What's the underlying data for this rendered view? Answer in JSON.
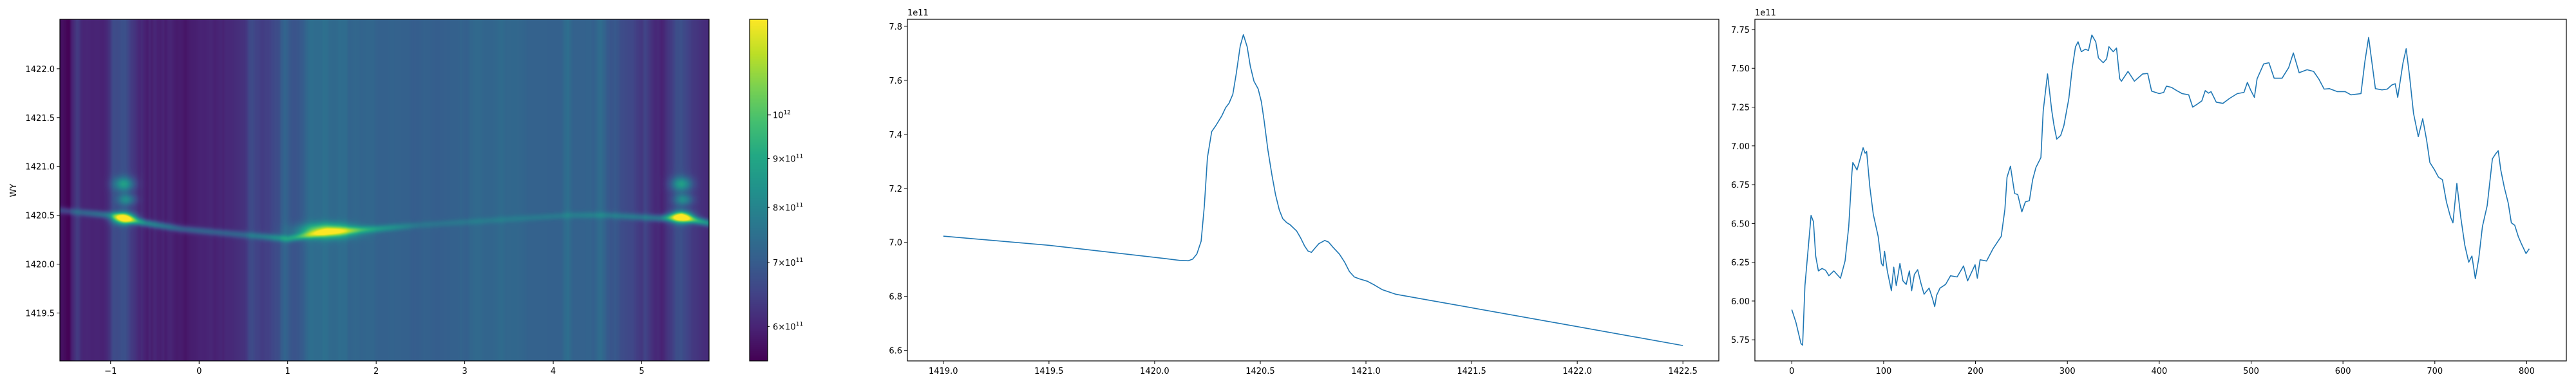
{
  "chart_data": [
    {
      "type": "heatmap",
      "ylabel": "WY",
      "xlabel": "",
      "xlim": [
        -1.573,
        5.76
      ],
      "ylim": [
        1419.01,
        1422.506
      ],
      "xticks": [
        -1,
        0,
        1,
        2,
        3,
        4,
        5
      ],
      "xtick_labels": [
        "−1",
        "0",
        "1",
        "2",
        "3",
        "4",
        "5"
      ],
      "yticks": [
        1419.5,
        1420.0,
        1420.5,
        1421.0,
        1421.5,
        1422.0
      ],
      "ytick_labels": [
        "1419.5",
        "1420.0",
        "1420.5",
        "1421.0",
        "1421.5",
        "1422.0"
      ],
      "colormap": "viridis",
      "column_background": "follows the series of the right-hand line chart (same 804 columns)",
      "ridge": [
        [
          -1.57,
          1420.55,
          0.8
        ],
        [
          -1.0,
          1420.5,
          1.5
        ],
        [
          -0.85,
          1420.47,
          4
        ],
        [
          -0.6,
          1420.42,
          2
        ],
        [
          -0.2,
          1420.36,
          1.2
        ],
        [
          0.5,
          1420.3,
          1
        ],
        [
          1.0,
          1420.26,
          1.8
        ],
        [
          1.45,
          1420.33,
          3
        ],
        [
          2.0,
          1420.36,
          1.5
        ],
        [
          2.5,
          1420.4,
          0.5
        ],
        [
          3.5,
          1420.46,
          0.5
        ],
        [
          4.2,
          1420.5,
          0.6
        ],
        [
          4.6,
          1420.5,
          0.8
        ],
        [
          5.2,
          1420.47,
          1.5
        ],
        [
          5.45,
          1420.48,
          4
        ],
        [
          5.76,
          1420.42,
          2
        ]
      ],
      "blobs": [
        [
          -0.85,
          1420.47,
          0.08,
          0.04,
          5
        ],
        [
          -0.85,
          1420.82,
          0.08,
          0.05,
          2
        ],
        [
          -0.82,
          1420.66,
          0.07,
          0.04,
          1.5
        ],
        [
          1.45,
          1420.34,
          0.2,
          0.05,
          4
        ],
        [
          5.45,
          1420.48,
          0.08,
          0.04,
          5
        ],
        [
          5.45,
          1420.82,
          0.08,
          0.05,
          2
        ],
        [
          5.47,
          1420.66,
          0.07,
          0.04,
          1.5
        ]
      ],
      "colorbar": {
        "scale": "log",
        "range": [
          552000000000.0,
          1260000000000.0
        ],
        "ticks": [
          600000000000.0,
          700000000000.0,
          800000000000.0,
          900000000000.0,
          1000000000000.0
        ],
        "tick_labels": [
          {
            "base": "6×10",
            "exp": "11"
          },
          {
            "base": "7×10",
            "exp": "11"
          },
          {
            "base": "8×10",
            "exp": "11"
          },
          {
            "base": "9×10",
            "exp": "11"
          },
          {
            "base": "10",
            "exp": "12"
          }
        ]
      }
    },
    {
      "type": "line",
      "xlabel": "",
      "ylabel": "",
      "offset_text": "1e11",
      "xlim": [
        1418.83,
        1422.67
      ],
      "ylim": [
        6.561,
        7.826
      ],
      "xticks": [
        1419.0,
        1419.5,
        1420.0,
        1420.5,
        1421.0,
        1421.5,
        1422.0,
        1422.5
      ],
      "xtick_labels": [
        "1419.0",
        "1419.5",
        "1420.0",
        "1420.5",
        "1421.0",
        "1421.5",
        "1422.0",
        "1422.5"
      ],
      "yticks": [
        6.6,
        6.8,
        7.0,
        7.2,
        7.4,
        7.6,
        7.8
      ],
      "ytick_labels": [
        "6.6",
        "6.8",
        "7.0",
        "7.2",
        "7.4",
        "7.6",
        "7.8"
      ],
      "color": "#1f77b4",
      "x": [
        1419.0,
        1419.5,
        1420.05,
        1420.12,
        1420.16,
        1420.18,
        1420.2,
        1420.22,
        1420.235,
        1420.25,
        1420.27,
        1420.29,
        1420.318,
        1420.336,
        1420.352,
        1420.37,
        1420.386,
        1420.405,
        1420.42,
        1420.438,
        1420.453,
        1420.47,
        1420.49,
        1420.505,
        1420.518,
        1420.536,
        1420.555,
        1420.572,
        1420.59,
        1420.606,
        1420.625,
        1420.64,
        1420.672,
        1420.69,
        1420.71,
        1420.726,
        1420.742,
        1420.757,
        1420.777,
        1420.805,
        1420.823,
        1420.843,
        1420.875,
        1420.898,
        1420.922,
        1420.945,
        1420.968,
        1421.007,
        1421.04,
        1421.077,
        1421.14,
        1421.27,
        1421.9,
        1422.5
      ],
      "y": [
        7.023,
        6.989,
        6.94,
        6.933,
        6.932,
        6.938,
        6.957,
        7.004,
        7.132,
        7.314,
        7.41,
        7.433,
        7.469,
        7.499,
        7.515,
        7.548,
        7.624,
        7.727,
        7.769,
        7.724,
        7.652,
        7.597,
        7.568,
        7.521,
        7.451,
        7.342,
        7.25,
        7.177,
        7.12,
        7.088,
        7.073,
        7.066,
        7.042,
        7.018,
        6.986,
        6.968,
        6.963,
        6.977,
        6.995,
        7.007,
        7.001,
        6.983,
        6.956,
        6.928,
        6.892,
        6.872,
        6.865,
        6.856,
        6.842,
        6.825,
        6.808,
        6.79,
        6.702,
        6.618
      ]
    },
    {
      "type": "line",
      "xlabel": "",
      "ylabel": "",
      "offset_text": "1e11",
      "xlim": [
        -40.15,
        843.15
      ],
      "ylim": [
        5.614,
        7.816
      ],
      "xticks": [
        0,
        100,
        200,
        300,
        400,
        500,
        600,
        700,
        800
      ],
      "xtick_labels": [
        "0",
        "100",
        "200",
        "300",
        "400",
        "500",
        "600",
        "700",
        "800"
      ],
      "yticks": [
        5.75,
        6.0,
        6.25,
        6.5,
        6.75,
        7.0,
        7.25,
        7.5,
        7.75
      ],
      "ytick_labels": [
        "5.75",
        "6.00",
        "6.25",
        "6.50",
        "6.75",
        "7.00",
        "7.25",
        "7.50",
        "7.75"
      ],
      "color": "#1f77b4",
      "x": [
        0,
        4.6,
        10,
        11.8,
        14.3,
        19,
        21,
        23.6,
        26,
        29,
        33,
        36.8,
        40.4,
        45.8,
        53,
        58,
        62,
        65.5,
        66.5,
        71,
        74.4,
        77.6,
        79.8,
        81.5,
        85,
        88.7,
        94,
        97.6,
        99.4,
        101,
        104,
        108.4,
        111,
        113.7,
        117.7,
        121,
        124.5,
        128,
        130.5,
        133.4,
        137,
        140.6,
        144,
        149.5,
        153,
        155.6,
        157.6,
        161.3,
        167.4,
        172.8,
        180,
        187,
        191.4,
        199.5,
        202,
        205,
        212,
        219,
        228,
        232,
        234.3,
        238,
        242.6,
        246,
        250.4,
        254.3,
        258.6,
        262.2,
        265.8,
        271.2,
        273.7,
        278.4,
        283,
        285.5,
        288.4,
        292.7,
        296.2,
        301.6,
        305.2,
        308.8,
        311.6,
        315.2,
        319.5,
        323,
        326.6,
        330.9,
        333.8,
        339,
        342.7,
        345.2,
        349.9,
        353.5,
        357,
        358.9,
        366,
        373,
        382,
        387.4,
        391.7,
        400,
        404.9,
        407.8,
        413.5,
        419.2,
        424.9,
        432.1,
        436.4,
        440.7,
        446.4,
        450.1,
        453.6,
        456.4,
        462.1,
        469.3,
        476.5,
        485,
        492.2,
        495.9,
        499.4,
        503.6,
        506.5,
        513.7,
        519.4,
        525.1,
        533.7,
        540.9,
        546,
        552.3,
        560.9,
        568,
        573.8,
        579.5,
        585.2,
        593.8,
        602.4,
        608.7,
        619.6,
        623.9,
        627.9,
        631,
        635.3,
        642.5,
        648.2,
        653.3,
        656.8,
        659.6,
        665.4,
        668.8,
        672.5,
        676.8,
        682,
        686.8,
        691.1,
        694.6,
        699.7,
        704,
        708.3,
        712.6,
        716.9,
        719.7,
        724,
        728.3,
        732.6,
        736.9,
        740.4,
        744.1,
        747.8,
        751.8,
        757,
        762.7,
        766.1,
        769,
        771.8,
        775.6,
        779.9,
        783.3,
        787,
        790.8,
        794.2,
        799.3,
        802.8
      ],
      "y": [
        5.944,
        5.861,
        5.726,
        5.715,
        6.099,
        6.417,
        6.552,
        6.512,
        6.29,
        6.194,
        6.21,
        6.198,
        6.163,
        6.194,
        6.147,
        6.258,
        6.48,
        6.83,
        6.893,
        6.845,
        6.917,
        6.988,
        6.953,
        6.964,
        6.734,
        6.56,
        6.417,
        6.242,
        6.226,
        6.321,
        6.194,
        6.067,
        6.218,
        6.099,
        6.242,
        6.13,
        6.107,
        6.194,
        6.067,
        6.171,
        6.202,
        6.115,
        6.044,
        6.083,
        6.02,
        5.964,
        6.036,
        6.083,
        6.107,
        6.163,
        6.155,
        6.226,
        6.13,
        6.234,
        6.147,
        6.266,
        6.258,
        6.337,
        6.417,
        6.591,
        6.798,
        6.869,
        6.694,
        6.686,
        6.575,
        6.639,
        6.647,
        6.782,
        6.861,
        6.925,
        7.226,
        7.464,
        7.226,
        7.131,
        7.044,
        7.067,
        7.131,
        7.306,
        7.496,
        7.639,
        7.671,
        7.607,
        7.623,
        7.615,
        7.715,
        7.671,
        7.567,
        7.536,
        7.56,
        7.639,
        7.607,
        7.631,
        7.433,
        7.417,
        7.48,
        7.417,
        7.464,
        7.467,
        7.353,
        7.337,
        7.345,
        7.385,
        7.377,
        7.356,
        7.337,
        7.329,
        7.25,
        7.266,
        7.29,
        7.356,
        7.34,
        7.35,
        7.282,
        7.274,
        7.306,
        7.337,
        7.345,
        7.409,
        7.361,
        7.313,
        7.433,
        7.528,
        7.536,
        7.436,
        7.436,
        7.504,
        7.599,
        7.472,
        7.491,
        7.48,
        7.43,
        7.366,
        7.369,
        7.35,
        7.35,
        7.329,
        7.337,
        7.544,
        7.699,
        7.56,
        7.369,
        7.361,
        7.366,
        7.393,
        7.401,
        7.313,
        7.536,
        7.626,
        7.448,
        7.21,
        7.06,
        7.175,
        7.036,
        6.893,
        6.845,
        6.798,
        6.782,
        6.639,
        6.544,
        6.504,
        6.758,
        6.536,
        6.361,
        6.25,
        6.29,
        6.144,
        6.274,
        6.48,
        6.615,
        6.917,
        6.948,
        6.969,
        6.845,
        6.734,
        6.631,
        6.504,
        6.488,
        6.417,
        6.369,
        6.306,
        6.337
      ]
    }
  ]
}
